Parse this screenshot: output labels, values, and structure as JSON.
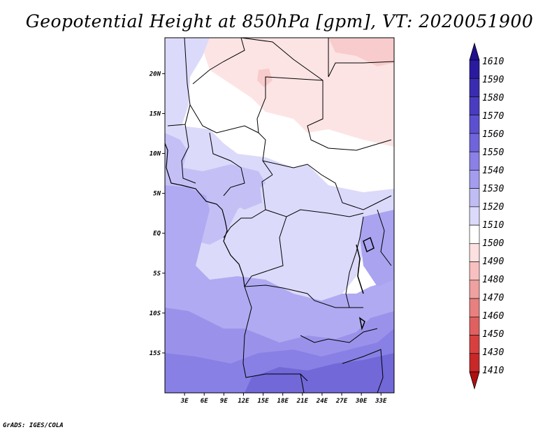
{
  "title": "Geopotential Height at 850hPa [gpm], VT: 2020051900",
  "footer": "GrADS: IGES/COLA",
  "map": {
    "lat_ticks": [
      "20N",
      "15N",
      "10N",
      "5N",
      "EQ",
      "5S",
      "10S",
      "15S"
    ],
    "lat_values": [
      20,
      15,
      10,
      5,
      0,
      -5,
      -10,
      -15
    ],
    "lon_ticks": [
      "3E",
      "6E",
      "9E",
      "12E",
      "15E",
      "18E",
      "21E",
      "24E",
      "27E",
      "30E",
      "33E"
    ],
    "lon_values": [
      3,
      6,
      9,
      12,
      15,
      18,
      21,
      24,
      27,
      30,
      33
    ],
    "lon_range": [
      0,
      35
    ],
    "lat_range": [
      -20,
      24.5
    ]
  },
  "colorbar": {
    "labels": [
      "1610",
      "1590",
      "1580",
      "1570",
      "1560",
      "1550",
      "1540",
      "1530",
      "1520",
      "1510",
      "1500",
      "1490",
      "1480",
      "1470",
      "1460",
      "1450",
      "1430",
      "1410"
    ],
    "colors": [
      "#201090",
      "#2a1aa0",
      "#3a2cb0",
      "#4a3cc0",
      "#5c50d0",
      "#7064dc",
      "#8a80e6",
      "#a49cee",
      "#c0bcf4",
      "#dcdafa",
      "#ffffff",
      "#fde0e0",
      "#f8c0c0",
      "#f0a0a0",
      "#e88080",
      "#e06060",
      "#d84040",
      "#c82828",
      "#b01010"
    ]
  }
}
